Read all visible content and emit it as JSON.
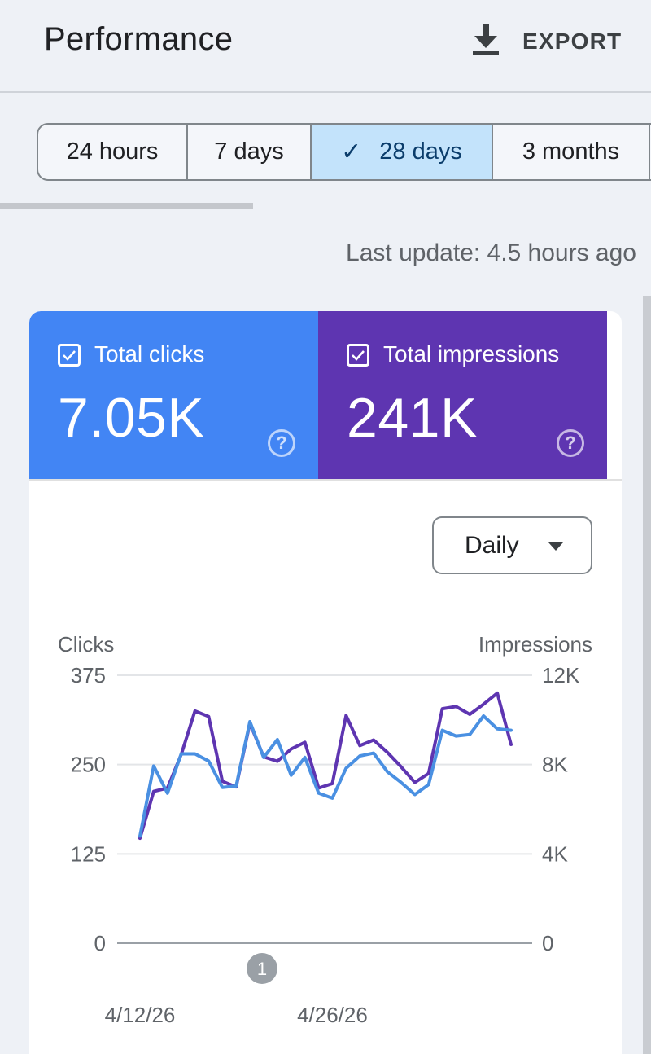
{
  "header": {
    "title": "Performance",
    "export_label": "EXPORT"
  },
  "date_range": {
    "options": [
      "24 hours",
      "7 days",
      "28 days",
      "3 months"
    ],
    "selected": "28 days"
  },
  "last_update": "Last update: 4.5 hours ago",
  "metrics": {
    "clicks": {
      "label": "Total clicks",
      "value": "7.05K",
      "checked": true,
      "color": "#4285f4"
    },
    "impressions": {
      "label": "Total impressions",
      "value": "241K",
      "checked": true,
      "color": "#5e35b1"
    }
  },
  "granularity": {
    "value": "Daily"
  },
  "annotation": {
    "label": "1"
  },
  "chart_data": {
    "type": "line",
    "left_axis_label": "Clicks",
    "right_axis_label": "Impressions",
    "left_ticks": [
      "0",
      "125",
      "250",
      "375"
    ],
    "right_ticks": [
      "0",
      "4K",
      "8K",
      "12K"
    ],
    "ylim_left": [
      0,
      375
    ],
    "ylim_right": [
      0,
      12000
    ],
    "x_tick_labels": [
      "4/12/26",
      "4/26/26"
    ],
    "grid": true,
    "series": [
      {
        "name": "Clicks",
        "axis": "left",
        "color": "#4a90e2",
        "values": [
          150,
          248,
          210,
          265,
          265,
          255,
          218,
          220,
          310,
          260,
          285,
          235,
          260,
          210,
          203,
          245,
          262,
          266,
          240,
          225,
          208,
          222,
          298,
          290,
          292,
          318,
          300,
          298
        ]
      },
      {
        "name": "Impressions",
        "axis": "right",
        "color": "#5e35b1",
        "values": [
          4700,
          6800,
          6950,
          8450,
          10400,
          10150,
          7250,
          7000,
          9850,
          8350,
          8150,
          8700,
          9000,
          6950,
          7150,
          10200,
          8850,
          9100,
          8550,
          7900,
          7200,
          7600,
          10500,
          10600,
          10250,
          10700,
          11200,
          8900
        ]
      }
    ]
  }
}
